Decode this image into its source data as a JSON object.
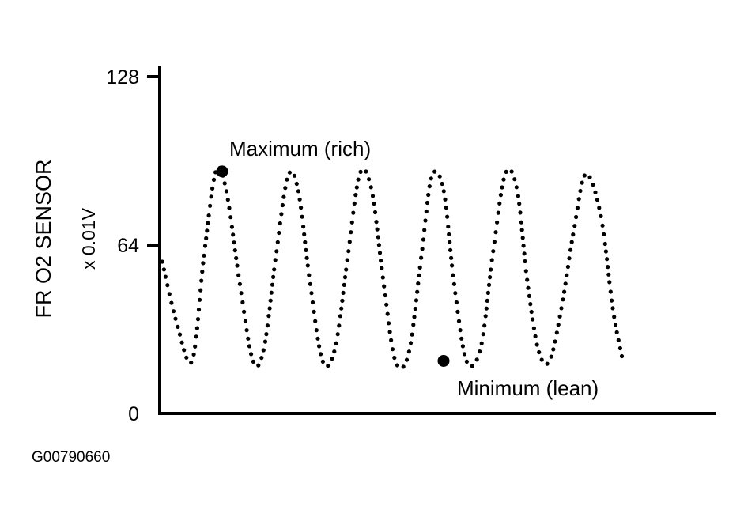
{
  "chart_data": {
    "type": "line",
    "title": "",
    "ylabel": "FR O2 SENSOR",
    "ylabel_unit": "x 0.01V",
    "xlabel": "",
    "ylim": [
      0,
      128
    ],
    "y_ticks": [
      {
        "value": 0,
        "label": "0"
      },
      {
        "value": 64,
        "label": "64"
      },
      {
        "value": 128,
        "label": "128"
      }
    ],
    "line_style": "dotted",
    "grid": false,
    "cycles": 5,
    "series": [
      {
        "x": [
          0,
          18,
          38,
          53,
          68,
          81,
          98,
          115,
          129,
          144,
          159,
          172,
          187,
          203,
          219,
          235,
          250,
          265,
          280,
          295,
          312,
          328,
          341,
          356,
          369,
          385,
          403,
          418,
          434,
          449,
          462,
          476,
          490,
          505,
          521,
          536,
          555,
          570,
          582
        ],
        "values": [
          58,
          35,
          20,
          60,
          92,
          85,
          50,
          20,
          25,
          60,
          90,
          85,
          50,
          20,
          25,
          60,
          91,
          85,
          50,
          20,
          23,
          60,
          90,
          85,
          50,
          20,
          25,
          60,
          91,
          85,
          50,
          24,
          20,
          40,
          70,
          91,
          75,
          40,
          21
        ]
      }
    ],
    "annotations": [
      {
        "text": "Maximum (rich)",
        "x": 76,
        "y": 92
      },
      {
        "text": "Minimum (lean)",
        "x": 356,
        "y": 20
      }
    ]
  },
  "figure_id": "G00790660"
}
